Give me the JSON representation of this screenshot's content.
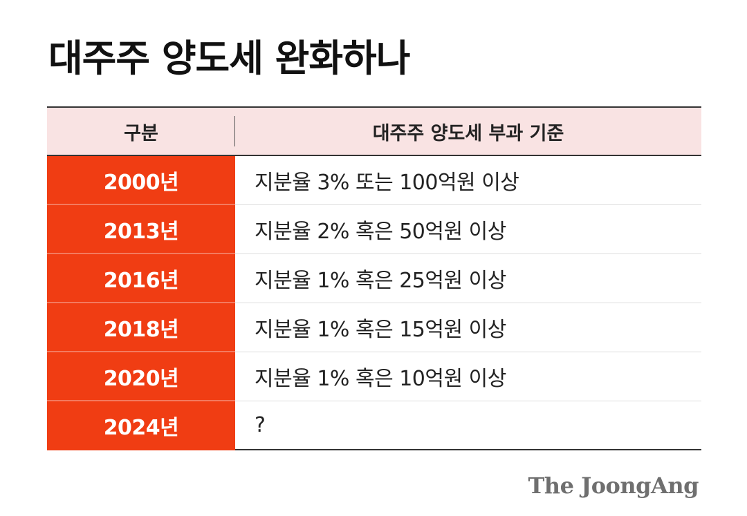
{
  "title": "대주주 양도세 완화하나",
  "table": {
    "headers": {
      "year": "구분",
      "criteria": "대주주 양도세 부과 기준"
    },
    "rows": [
      {
        "year": "2000년",
        "criteria": "지분율 3% 또는 100억원 이상"
      },
      {
        "year": "2013년",
        "criteria": "지분율 2% 혹은 50억원 이상"
      },
      {
        "year": "2016년",
        "criteria": "지분율 1% 혹은 25억원 이상"
      },
      {
        "year": "2018년",
        "criteria": "지분율 1% 혹은 15억원 이상"
      },
      {
        "year": "2020년",
        "criteria": "지분율 1% 혹은 10억원 이상"
      },
      {
        "year": "2024년",
        "criteria": "?"
      }
    ]
  },
  "source": "The JoongAng",
  "colors": {
    "accent": "#f03d13",
    "header_bg": "#f9e3e3"
  }
}
